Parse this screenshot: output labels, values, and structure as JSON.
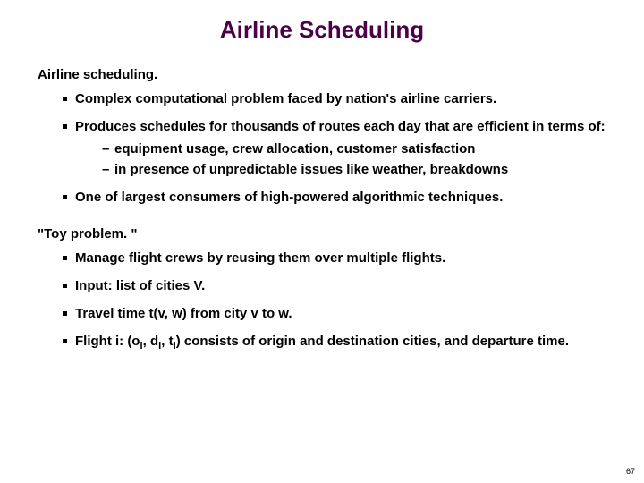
{
  "title": {
    "text": "Airline Scheduling",
    "color": "#4b0049",
    "fontsize": 26
  },
  "section1": {
    "label": "Airline scheduling.",
    "bullets": [
      {
        "text": "Complex computational problem faced by nation's airline carriers."
      },
      {
        "text": "Produces schedules for thousands of routes each day that are efficient in terms of:",
        "sub": [
          "equipment usage, crew allocation, customer satisfaction",
          "in presence of unpredictable issues like weather, breakdowns"
        ]
      },
      {
        "text": "One of largest consumers of high-powered algorithmic techniques."
      }
    ]
  },
  "section2": {
    "label": "\"Toy problem. \"",
    "bullets": [
      {
        "text": "Manage flight crews by reusing them over multiple flights."
      },
      {
        "text": "Input:  list of cities V."
      },
      {
        "text": "Travel time t(v, w) from city v to w."
      },
      {
        "html": "Flight i:  (o<sub>i</sub>, d<sub>i</sub>, t<sub>i</sub>) consists of origin and destination cities, and departure time."
      }
    ]
  },
  "page": "67",
  "colors": {
    "title": "#4b0049",
    "text": "#000000",
    "background": "#ffffff"
  }
}
